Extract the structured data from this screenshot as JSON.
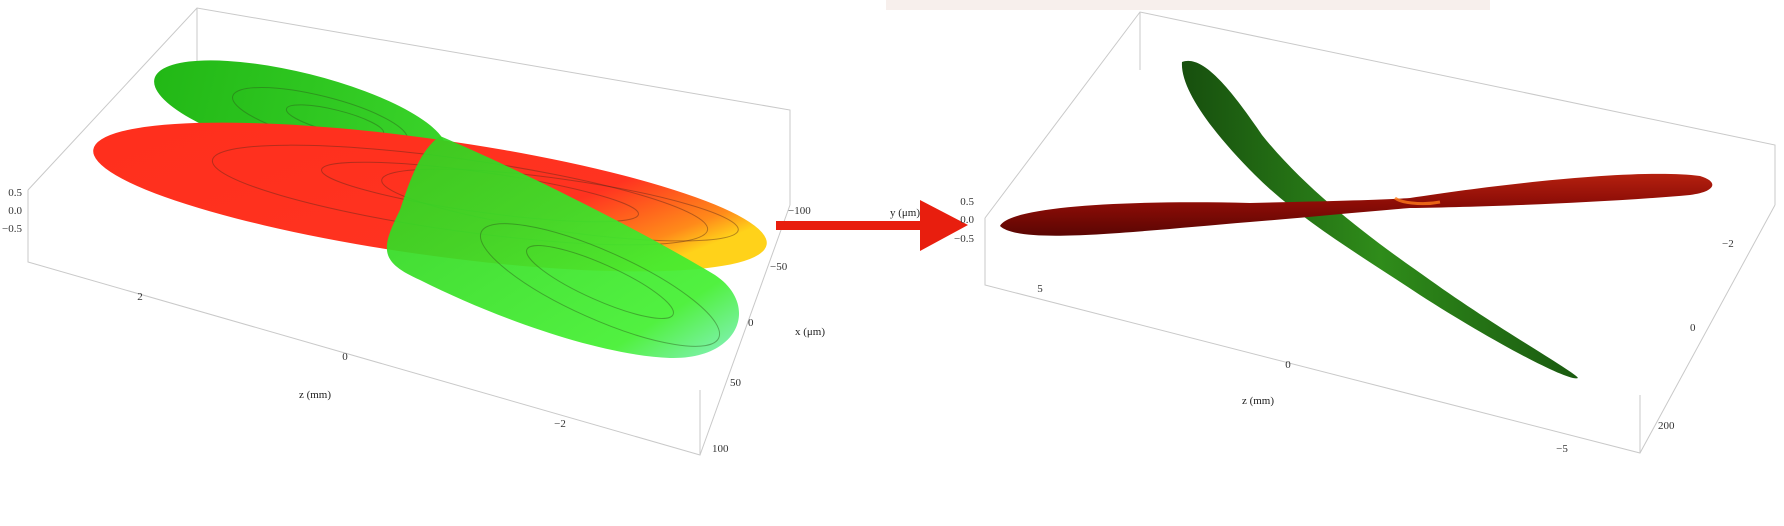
{
  "left_plot": {
    "y_ticks": [
      "0.5",
      "0.0",
      "−0.5"
    ],
    "z_ticks": [
      "2",
      "0",
      "−2"
    ],
    "z_label": "z (mm)",
    "x_ticks": [
      "−100",
      "−50",
      "0",
      "50",
      "100"
    ],
    "x_label": "x (μm)"
  },
  "right_plot": {
    "y_label": "y (μm)",
    "y_ticks": [
      "0.5",
      "0.0",
      "−0.5"
    ],
    "z_ticks": [
      "5",
      "0",
      "−5"
    ],
    "z_label": "z (mm)",
    "x_ticks": [
      "−2",
      "0",
      "200"
    ]
  },
  "colors": {
    "red_lobe": "#ff2a1a",
    "green_lobe": "#3fe82f",
    "dark_red_lobe": "#8a0c06",
    "dark_green_lobe": "#1f6e12",
    "arrow": "#e81e0e"
  }
}
